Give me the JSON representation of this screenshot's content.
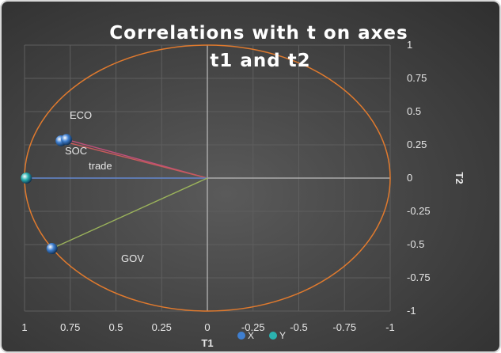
{
  "chart_data": {
    "type": "scatter",
    "title_lines": [
      "Correlations  with t on axes",
      "t1 and t2"
    ],
    "xlabel": "T1",
    "ylabel": "T2",
    "xlim": [
      1,
      -1
    ],
    "ylim": [
      -1,
      1
    ],
    "x_ticks": [
      "1",
      "0.75",
      "0.5",
      "0.25",
      "0",
      "-0.25",
      "-0.5",
      "-0.75",
      "-1"
    ],
    "y_ticks": [
      "1",
      "0.75",
      "0.5",
      "0.25",
      "0",
      "-0.25",
      "-0.5",
      "-0.75",
      "-1"
    ],
    "grid": true,
    "legend_position": "bottom",
    "series": [
      {
        "name": "X",
        "color": "#3f7fd0",
        "points": [
          {
            "x": 0.8,
            "y": 0.28
          },
          {
            "x": 0.77,
            "y": 0.29
          },
          {
            "x": 0.85,
            "y": -0.53
          }
        ]
      },
      {
        "name": "Y",
        "color": "#2bb3b0",
        "points": [
          {
            "x": 0.99,
            "y": 0.0
          }
        ]
      }
    ],
    "vectors": [
      {
        "label": "ECO",
        "x": 0.77,
        "y": 0.29,
        "color": "#c0507a"
      },
      {
        "label": "SOC",
        "x": 0.8,
        "y": 0.28,
        "color": "#c75b5b"
      },
      {
        "label": "trade",
        "x": 0.99,
        "y": 0.0,
        "color": "#5b7fc7"
      },
      {
        "label": "GOV",
        "x": 0.85,
        "y": -0.53,
        "color": "#9bb35b"
      }
    ],
    "circle": {
      "radius": 1,
      "color": "#e07a2e"
    }
  }
}
